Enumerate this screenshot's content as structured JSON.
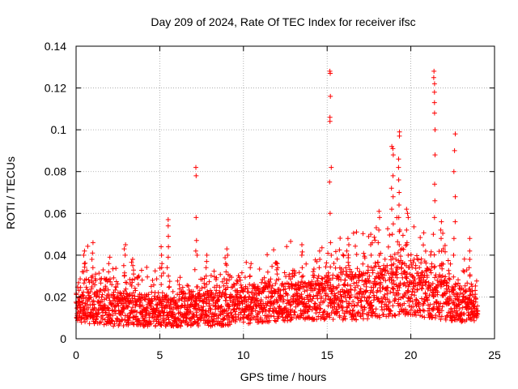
{
  "chart_data": {
    "type": "scatter",
    "title": "Day 209 of 2024, Rate Of TEC Index for receiver ifsc",
    "xlabel": "GPS time / hours",
    "ylabel": "ROTI / TECUs",
    "xlim": [
      0,
      25
    ],
    "ylim": [
      0,
      0.14
    ],
    "xticks": [
      0,
      5,
      10,
      15,
      20,
      25
    ],
    "xtick_labels": [
      "0",
      "5",
      "10",
      "15",
      "20",
      "25"
    ],
    "yticks": [
      0,
      0.02,
      0.04,
      0.06,
      0.08,
      0.1,
      0.12,
      0.14
    ],
    "ytick_labels": [
      "0",
      "0.02",
      "0.04",
      "0.06",
      "0.08",
      "0.1",
      "0.12",
      "0.14"
    ],
    "grid": true,
    "marker": "plus",
    "series": [
      {
        "name": "ROTI",
        "color": "#ff0000",
        "data_extent": {
          "x_min": 0.0,
          "x_max": 24.0
        },
        "dense_band": [
          {
            "x": 0.0,
            "lo": 0.008,
            "hi": 0.022
          },
          {
            "x": 1.0,
            "lo": 0.007,
            "hi": 0.026
          },
          {
            "x": 2.0,
            "lo": 0.006,
            "hi": 0.024
          },
          {
            "x": 3.0,
            "lo": 0.006,
            "hi": 0.022
          },
          {
            "x": 4.0,
            "lo": 0.006,
            "hi": 0.02
          },
          {
            "x": 5.0,
            "lo": 0.006,
            "hi": 0.02
          },
          {
            "x": 6.0,
            "lo": 0.006,
            "hi": 0.019
          },
          {
            "x": 7.0,
            "lo": 0.006,
            "hi": 0.02
          },
          {
            "x": 8.0,
            "lo": 0.006,
            "hi": 0.022
          },
          {
            "x": 9.0,
            "lo": 0.006,
            "hi": 0.022
          },
          {
            "x": 10.0,
            "lo": 0.007,
            "hi": 0.024
          },
          {
            "x": 11.0,
            "lo": 0.008,
            "hi": 0.025
          },
          {
            "x": 12.0,
            "lo": 0.008,
            "hi": 0.026
          },
          {
            "x": 13.0,
            "lo": 0.009,
            "hi": 0.027
          },
          {
            "x": 14.0,
            "lo": 0.009,
            "hi": 0.028
          },
          {
            "x": 15.0,
            "lo": 0.009,
            "hi": 0.03
          },
          {
            "x": 16.0,
            "lo": 0.009,
            "hi": 0.031
          },
          {
            "x": 17.0,
            "lo": 0.009,
            "hi": 0.031
          },
          {
            "x": 18.0,
            "lo": 0.01,
            "hi": 0.033
          },
          {
            "x": 19.0,
            "lo": 0.011,
            "hi": 0.036
          },
          {
            "x": 20.0,
            "lo": 0.011,
            "hi": 0.036
          },
          {
            "x": 21.0,
            "lo": 0.01,
            "hi": 0.033
          },
          {
            "x": 22.0,
            "lo": 0.009,
            "hi": 0.028
          },
          {
            "x": 23.0,
            "lo": 0.008,
            "hi": 0.024
          },
          {
            "x": 24.0,
            "lo": 0.008,
            "hi": 0.022
          }
        ],
        "spikes": [
          {
            "x": 0.5,
            "y": [
              0.028,
              0.032,
              0.036,
              0.04,
              0.042
            ]
          },
          {
            "x": 1.0,
            "y": [
              0.03,
              0.034,
              0.038,
              0.041,
              0.046
            ]
          },
          {
            "x": 2.0,
            "y": [
              0.028,
              0.032,
              0.036,
              0.039
            ]
          },
          {
            "x": 2.9,
            "y": [
              0.03,
              0.035,
              0.04,
              0.043,
              0.045
            ]
          },
          {
            "x": 3.4,
            "y": [
              0.027,
              0.031,
              0.035,
              0.038
            ]
          },
          {
            "x": 5.1,
            "y": [
              0.026,
              0.03,
              0.034,
              0.036,
              0.04,
              0.044
            ]
          },
          {
            "x": 5.5,
            "y": [
              0.03,
              0.034,
              0.039,
              0.044,
              0.049,
              0.054,
              0.057
            ]
          },
          {
            "x": 7.2,
            "y": [
              0.04,
              0.042,
              0.047,
              0.058,
              0.078,
              0.082
            ]
          },
          {
            "x": 7.8,
            "y": [
              0.026,
              0.03,
              0.034,
              0.037,
              0.04
            ]
          },
          {
            "x": 9.0,
            "y": [
              0.028,
              0.032,
              0.036,
              0.04,
              0.043
            ]
          },
          {
            "x": 10.4,
            "y": [
              0.026,
              0.03,
              0.034,
              0.036
            ]
          },
          {
            "x": 12.0,
            "y": [
              0.028,
              0.031,
              0.034,
              0.036
            ]
          },
          {
            "x": 13.5,
            "y": [
              0.03,
              0.034,
              0.04,
              0.045
            ]
          },
          {
            "x": 14.5,
            "y": [
              0.03,
              0.034,
              0.038,
              0.042
            ]
          },
          {
            "x": 15.2,
            "y": [
              0.04,
              0.046,
              0.06,
              0.075,
              0.082,
              0.104,
              0.106,
              0.116,
              0.127,
              0.128
            ]
          },
          {
            "x": 16.3,
            "y": [
              0.035,
              0.04,
              0.045,
              0.048
            ]
          },
          {
            "x": 17.6,
            "y": [
              0.034,
              0.04,
              0.045,
              0.05
            ]
          },
          {
            "x": 18.1,
            "y": [
              0.04,
              0.046,
              0.052,
              0.058,
              0.061
            ]
          },
          {
            "x": 18.9,
            "y": [
              0.05,
              0.055,
              0.062,
              0.068,
              0.072,
              0.078,
              0.088,
              0.091,
              0.092
            ]
          },
          {
            "x": 19.3,
            "y": [
              0.045,
              0.052,
              0.058,
              0.064,
              0.07,
              0.076,
              0.082,
              0.086,
              0.097,
              0.099
            ]
          },
          {
            "x": 19.8,
            "y": [
              0.04,
              0.046,
              0.052,
              0.058,
              0.062
            ]
          },
          {
            "x": 21.4,
            "y": [
              0.05,
              0.058,
              0.066,
              0.074,
              0.088,
              0.1,
              0.108,
              0.113,
              0.118,
              0.122,
              0.125,
              0.128
            ]
          },
          {
            "x": 21.8,
            "y": [
              0.036,
              0.042,
              0.048,
              0.052,
              0.056
            ]
          },
          {
            "x": 22.6,
            "y": [
              0.04,
              0.048,
              0.056,
              0.068,
              0.08,
              0.09,
              0.098
            ]
          },
          {
            "x": 23.5,
            "y": [
              0.03,
              0.034,
              0.038,
              0.042,
              0.048
            ]
          }
        ]
      }
    ]
  }
}
